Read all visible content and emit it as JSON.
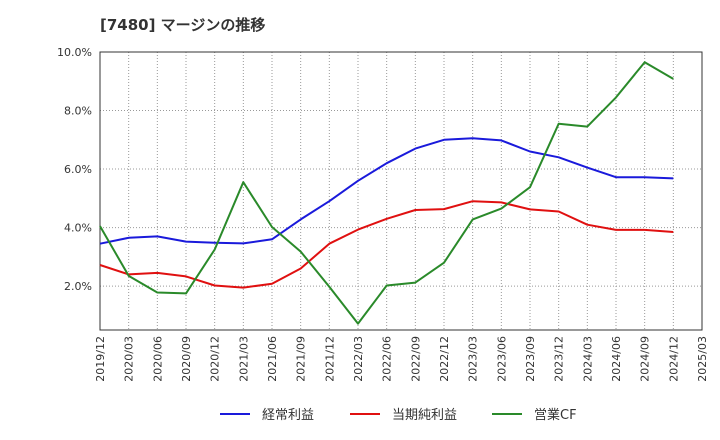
{
  "chart_data": {
    "type": "line",
    "title": "[7480]  マージンの推移",
    "x": [
      "2019/12",
      "2020/03",
      "2020/06",
      "2020/09",
      "2020/12",
      "2021/03",
      "2021/06",
      "2021/09",
      "2021/12",
      "2022/03",
      "2022/06",
      "2022/09",
      "2022/12",
      "2023/03",
      "2023/06",
      "2023/09",
      "2023/12",
      "2024/03",
      "2024/06",
      "2024/09",
      "2024/12",
      "2025/03"
    ],
    "y_ticks": [
      "2.0%",
      "4.0%",
      "6.0%",
      "8.0%",
      "10.0%"
    ],
    "ylim": [
      0.5,
      10.0
    ],
    "grid": true,
    "legend_position": "bottom",
    "series": [
      {
        "name": "経常利益",
        "color": "#1a1adb",
        "values": [
          3.45,
          3.65,
          3.7,
          3.52,
          3.48,
          3.46,
          3.6,
          4.28,
          4.9,
          5.6,
          6.2,
          6.7,
          7.0,
          7.05,
          6.98,
          6.6,
          6.4,
          6.05,
          5.72,
          5.72,
          5.68,
          null
        ]
      },
      {
        "name": "当期純利益",
        "color": "#e01010",
        "values": [
          2.72,
          2.4,
          2.45,
          2.33,
          2.02,
          1.95,
          2.08,
          2.6,
          3.45,
          3.93,
          4.3,
          4.6,
          4.63,
          4.9,
          4.86,
          4.62,
          4.55,
          4.1,
          3.92,
          3.92,
          3.85,
          null
        ]
      },
      {
        "name": "営業CF",
        "color": "#2a8a2a",
        "values": [
          4.05,
          2.35,
          1.78,
          1.75,
          3.25,
          5.55,
          4.02,
          3.18,
          1.98,
          0.72,
          2.02,
          2.12,
          2.8,
          4.28,
          4.65,
          5.38,
          7.55,
          7.45,
          8.45,
          9.65,
          9.08,
          null
        ]
      }
    ]
  }
}
